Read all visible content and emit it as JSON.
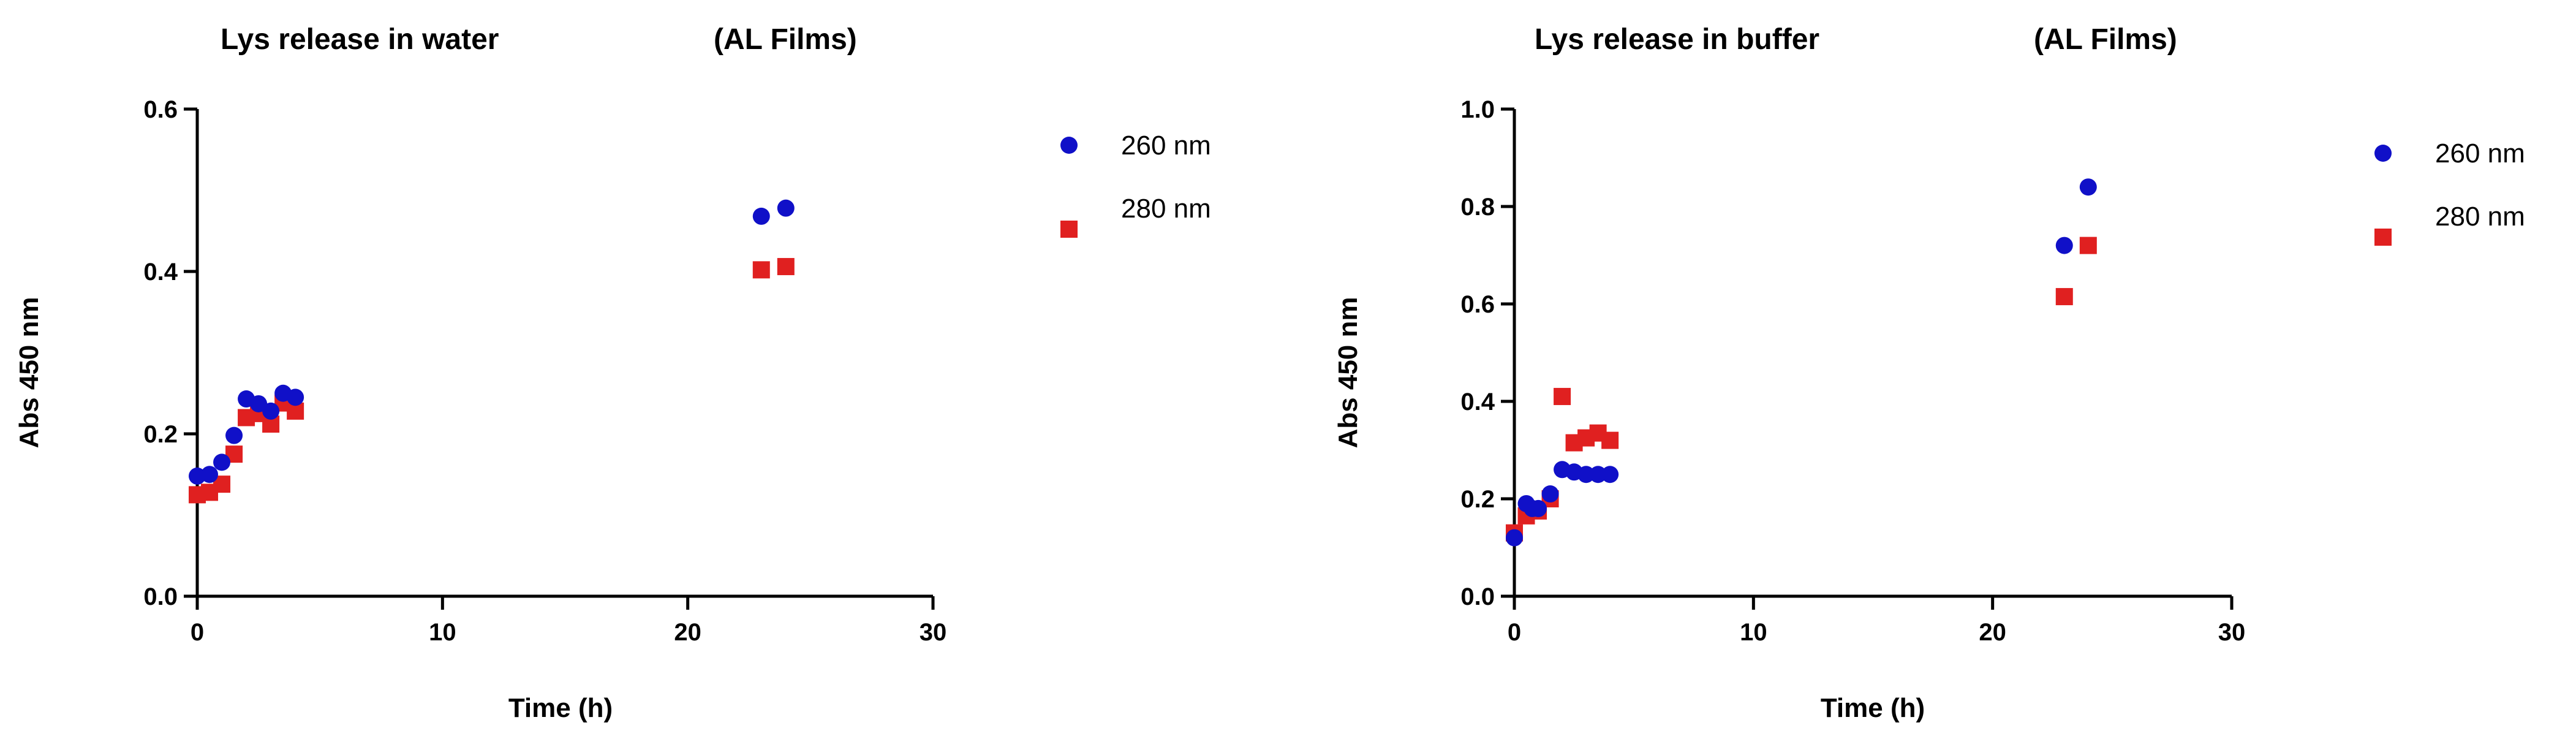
{
  "colors": {
    "series_260": "#1010c8",
    "series_280": "#e02020",
    "axis": "#000000"
  },
  "chart_data": [
    {
      "type": "scatter",
      "title": "Lys release in water",
      "subtitle": "(AL Films)",
      "xlabel": "Time (h)",
      "ylabel": "Abs 450 nm",
      "xlim": [
        0,
        30
      ],
      "ylim": [
        0,
        0.6
      ],
      "xticks": [
        0,
        10,
        20,
        30
      ],
      "yticks": [
        0.0,
        0.2,
        0.4,
        0.6
      ],
      "xtick_labels": [
        "0",
        "10",
        "20",
        "30"
      ],
      "ytick_labels": [
        "0.0",
        "0.2",
        "0.4",
        "0.6"
      ],
      "grid": false,
      "legend_position": "right",
      "series": [
        {
          "name": "260 nm",
          "marker": "circle",
          "color": "#1010c8",
          "points": [
            [
              0,
              0.148
            ],
            [
              0.5,
              0.15
            ],
            [
              1,
              0.165
            ],
            [
              1.5,
              0.198
            ],
            [
              2,
              0.243
            ],
            [
              2.5,
              0.237
            ],
            [
              3,
              0.228
            ],
            [
              3.5,
              0.25
            ],
            [
              4,
              0.245
            ],
            [
              23,
              0.468
            ],
            [
              24,
              0.478
            ]
          ]
        },
        {
          "name": "280 nm",
          "marker": "square",
          "color": "#e02020",
          "points": [
            [
              0,
              0.125
            ],
            [
              0.5,
              0.128
            ],
            [
              1,
              0.138
            ],
            [
              1.5,
              0.175
            ],
            [
              2,
              0.22
            ],
            [
              2.5,
              0.225
            ],
            [
              3,
              0.212
            ],
            [
              3.5,
              0.238
            ],
            [
              4,
              0.228
            ],
            [
              23,
              0.402
            ],
            [
              24,
              0.406
            ]
          ]
        }
      ]
    },
    {
      "type": "scatter",
      "title": "Lys release in buffer",
      "subtitle": "(AL Films)",
      "xlabel": "Time (h)",
      "ylabel": "Abs 450 nm",
      "xlim": [
        0,
        30
      ],
      "ylim": [
        0,
        1.0
      ],
      "xticks": [
        0,
        10,
        20,
        30
      ],
      "yticks": [
        0.0,
        0.2,
        0.4,
        0.6,
        0.8,
        1.0
      ],
      "xtick_labels": [
        "0",
        "10",
        "20",
        "30"
      ],
      "ytick_labels": [
        "0.0",
        "0.2",
        "0.4",
        "0.6",
        "0.8",
        "1.0"
      ],
      "grid": false,
      "legend_position": "right",
      "series": [
        {
          "name": "260 nm",
          "marker": "circle",
          "color": "#1010c8",
          "points": [
            [
              0,
              0.12
            ],
            [
              0.5,
              0.19
            ],
            [
              0.75,
              0.18
            ],
            [
              1,
              0.18
            ],
            [
              1.5,
              0.21
            ],
            [
              2,
              0.26
            ],
            [
              2.5,
              0.255
            ],
            [
              3,
              0.25
            ],
            [
              3.5,
              0.25
            ],
            [
              4,
              0.25
            ],
            [
              23,
              0.72
            ],
            [
              24,
              0.84
            ]
          ]
        },
        {
          "name": "280 nm",
          "marker": "square",
          "color": "#e02020",
          "points": [
            [
              0,
              0.13
            ],
            [
              0.5,
              0.165
            ],
            [
              1,
              0.175
            ],
            [
              1.5,
              0.2
            ],
            [
              2,
              0.41
            ],
            [
              2.5,
              0.315
            ],
            [
              3,
              0.325
            ],
            [
              3.5,
              0.335
            ],
            [
              4,
              0.32
            ],
            [
              23,
              0.615
            ],
            [
              24,
              0.72
            ]
          ]
        }
      ]
    }
  ]
}
